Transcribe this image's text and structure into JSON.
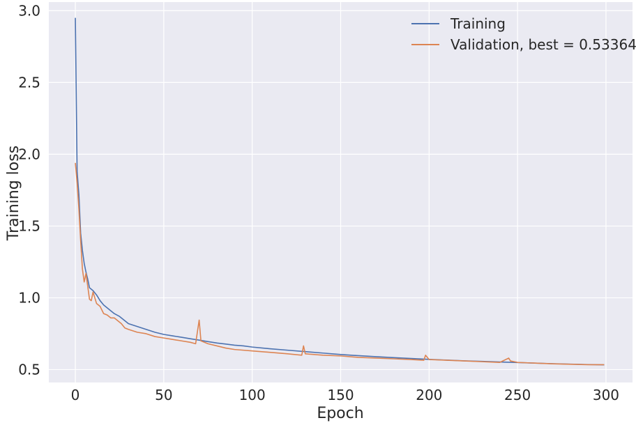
{
  "chart_data": {
    "type": "line",
    "title": "",
    "xlabel": "Epoch",
    "ylabel": "Training loss",
    "xlim": [
      -15,
      315
    ],
    "ylim": [
      0.41,
      3.06
    ],
    "xticks": [
      0,
      50,
      100,
      150,
      200,
      250,
      300
    ],
    "xtick_labels": [
      "0",
      "50",
      "100",
      "150",
      "200",
      "250",
      "300"
    ],
    "yticks": [
      0.5,
      1.0,
      1.5,
      2.0,
      2.5,
      3.0
    ],
    "ytick_labels": [
      "0.5",
      "1.0",
      "1.5",
      "2.0",
      "2.5",
      "3.0"
    ],
    "grid": true,
    "legend_position": "top-right",
    "series": [
      {
        "name": "Training",
        "color": "#4c72b0",
        "points": [
          [
            0,
            2.95
          ],
          [
            1,
            1.88
          ],
          [
            2,
            1.72
          ],
          [
            3,
            1.45
          ],
          [
            4,
            1.33
          ],
          [
            5,
            1.24
          ],
          [
            6,
            1.18
          ],
          [
            7,
            1.13
          ],
          [
            8,
            1.07
          ],
          [
            10,
            1.05
          ],
          [
            12,
            1.02
          ],
          [
            14,
            0.98
          ],
          [
            16,
            0.95
          ],
          [
            18,
            0.93
          ],
          [
            20,
            0.91
          ],
          [
            22,
            0.89
          ],
          [
            25,
            0.87
          ],
          [
            28,
            0.84
          ],
          [
            30,
            0.82
          ],
          [
            35,
            0.8
          ],
          [
            40,
            0.78
          ],
          [
            45,
            0.76
          ],
          [
            50,
            0.745
          ],
          [
            55,
            0.735
          ],
          [
            60,
            0.725
          ],
          [
            65,
            0.715
          ],
          [
            70,
            0.705
          ],
          [
            75,
            0.695
          ],
          [
            80,
            0.685
          ],
          [
            85,
            0.678
          ],
          [
            90,
            0.67
          ],
          [
            95,
            0.665
          ],
          [
            100,
            0.657
          ],
          [
            110,
            0.645
          ],
          [
            120,
            0.635
          ],
          [
            130,
            0.625
          ],
          [
            140,
            0.615
          ],
          [
            150,
            0.605
          ],
          [
            160,
            0.597
          ],
          [
            170,
            0.59
          ],
          [
            180,
            0.583
          ],
          [
            190,
            0.577
          ],
          [
            200,
            0.571
          ],
          [
            210,
            0.566
          ],
          [
            220,
            0.561
          ],
          [
            230,
            0.557
          ],
          [
            240,
            0.553
          ],
          [
            250,
            0.549
          ],
          [
            260,
            0.545
          ],
          [
            270,
            0.541
          ],
          [
            280,
            0.538
          ],
          [
            290,
            0.535
          ],
          [
            299,
            0.533
          ]
        ]
      },
      {
        "name": "Validation, best = 0.533645",
        "color": "#dd8452",
        "points": [
          [
            0,
            1.94
          ],
          [
            1,
            1.8
          ],
          [
            2,
            1.62
          ],
          [
            3,
            1.4
          ],
          [
            4,
            1.2
          ],
          [
            5,
            1.11
          ],
          [
            6,
            1.17
          ],
          [
            7,
            1.08
          ],
          [
            8,
            0.99
          ],
          [
            9,
            0.98
          ],
          [
            10,
            1.04
          ],
          [
            12,
            0.96
          ],
          [
            14,
            0.94
          ],
          [
            16,
            0.89
          ],
          [
            18,
            0.88
          ],
          [
            20,
            0.86
          ],
          [
            22,
            0.86
          ],
          [
            24,
            0.84
          ],
          [
            26,
            0.82
          ],
          [
            28,
            0.79
          ],
          [
            30,
            0.78
          ],
          [
            35,
            0.76
          ],
          [
            40,
            0.75
          ],
          [
            45,
            0.73
          ],
          [
            50,
            0.72
          ],
          [
            55,
            0.71
          ],
          [
            60,
            0.7
          ],
          [
            65,
            0.69
          ],
          [
            68,
            0.68
          ],
          [
            70,
            0.845
          ],
          [
            71,
            0.7
          ],
          [
            75,
            0.68
          ],
          [
            80,
            0.665
          ],
          [
            85,
            0.65
          ],
          [
            90,
            0.64
          ],
          [
            95,
            0.635
          ],
          [
            100,
            0.63
          ],
          [
            110,
            0.62
          ],
          [
            120,
            0.61
          ],
          [
            128,
            0.6
          ],
          [
            129,
            0.665
          ],
          [
            130,
            0.61
          ],
          [
            140,
            0.6
          ],
          [
            150,
            0.595
          ],
          [
            160,
            0.585
          ],
          [
            170,
            0.58
          ],
          [
            180,
            0.575
          ],
          [
            190,
            0.57
          ],
          [
            197,
            0.565
          ],
          [
            198,
            0.6
          ],
          [
            200,
            0.57
          ],
          [
            210,
            0.565
          ],
          [
            220,
            0.56
          ],
          [
            230,
            0.555
          ],
          [
            240,
            0.55
          ],
          [
            245,
            0.58
          ],
          [
            246,
            0.56
          ],
          [
            250,
            0.55
          ],
          [
            260,
            0.545
          ],
          [
            270,
            0.54
          ],
          [
            280,
            0.537
          ],
          [
            290,
            0.534
          ],
          [
            299,
            0.534
          ]
        ]
      }
    ]
  }
}
